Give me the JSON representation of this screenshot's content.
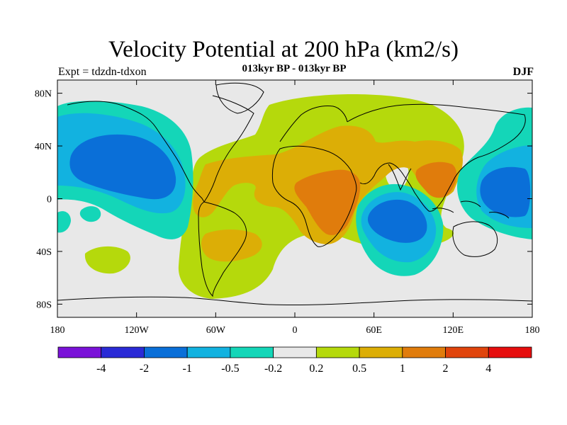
{
  "title": "Velocity Potential at 200 hPa (km2/s)",
  "subtitle": "013kyr BP - 013kyr BP",
  "left_label": "Expt = tdzdn-tdxon",
  "right_label": "DJF",
  "lat_labels": [
    "80N",
    "40N",
    "0",
    "40S",
    "80S"
  ],
  "lat_values": [
    80,
    40,
    0,
    -40,
    -80
  ],
  "lon_labels": [
    "180",
    "120W",
    "60W",
    "0",
    "60E",
    "120E",
    "180"
  ],
  "lon_values": [
    -180,
    -120,
    -60,
    0,
    60,
    120,
    180
  ],
  "colorbar": {
    "colors": [
      "#7a12d8",
      "#2a2ad6",
      "#0a6fd8",
      "#12b2e0",
      "#14d6b8",
      "#e8e8e8",
      "#b5d90c",
      "#dcae06",
      "#e07c0c",
      "#e0440c",
      "#e60e0e"
    ],
    "labels": [
      "-4",
      "-2",
      "-1",
      "-0.5",
      "-0.2",
      "0.2",
      "0.5",
      "1",
      "2",
      "4"
    ]
  },
  "colors": {
    "background": "#e8e8e8",
    "green": "#b5d90c",
    "yellow_orange": "#dcae06",
    "orange": "#e07c0c",
    "teal": "#14d6b8",
    "cyan": "#12b2e0",
    "blue": "#0a6fd8"
  }
}
